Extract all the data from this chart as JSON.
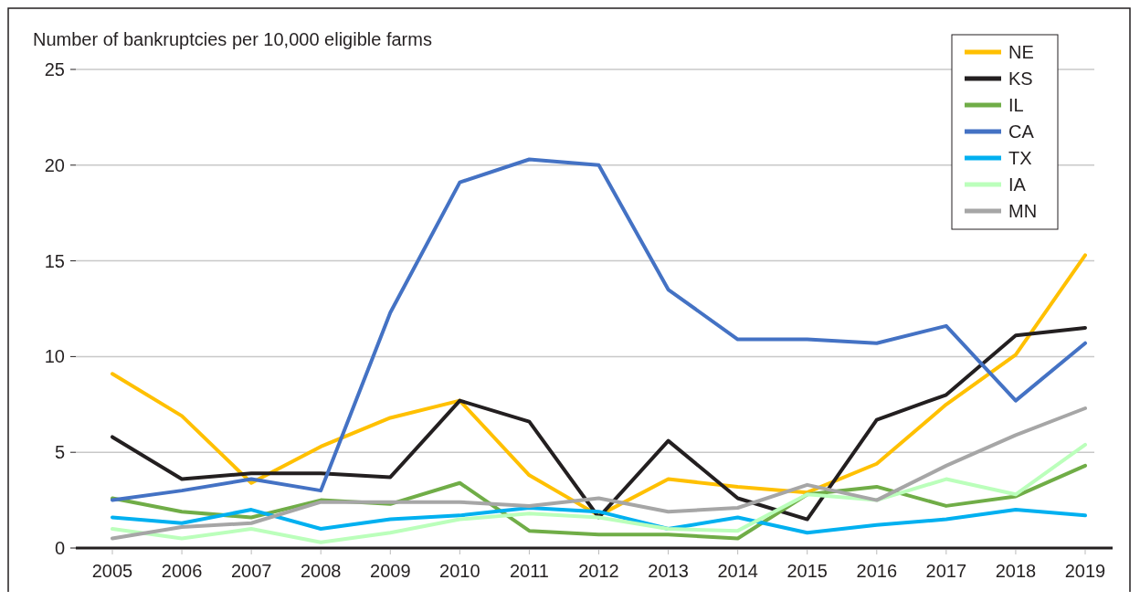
{
  "chart_data": {
    "type": "line",
    "ylabel": "Number of bankruptcies per 10,000 eligible farms",
    "categories": [
      "2005",
      "2006",
      "2007",
      "2008",
      "2009",
      "2010",
      "2011",
      "2012",
      "2013",
      "2014",
      "2015",
      "2016",
      "2017",
      "2018",
      "2019"
    ],
    "ylim": [
      0,
      25
    ],
    "yticks": [
      0,
      5,
      10,
      15,
      20,
      25
    ],
    "grid": "y",
    "legend": "top right",
    "line_style": "solid",
    "marker": "none",
    "series": [
      {
        "name": "NE",
        "color": "#ffc000",
        "values": [
          9.1,
          6.9,
          3.4,
          5.3,
          6.8,
          7.7,
          3.8,
          1.7,
          3.6,
          3.2,
          2.9,
          4.4,
          7.5,
          10.1,
          15.3
        ]
      },
      {
        "name": "KS",
        "color": "#231f20",
        "values": [
          5.8,
          3.6,
          3.9,
          3.9,
          3.7,
          7.7,
          6.6,
          1.6,
          5.6,
          2.6,
          1.5,
          6.7,
          8.0,
          11.1,
          11.5
        ]
      },
      {
        "name": "IL",
        "color": "#70ad47",
        "values": [
          2.6,
          1.9,
          1.6,
          2.5,
          2.3,
          3.4,
          0.9,
          0.7,
          0.7,
          0.5,
          2.8,
          3.2,
          2.2,
          2.7,
          4.3
        ]
      },
      {
        "name": "CA",
        "color": "#4472c4",
        "values": [
          2.5,
          3.0,
          3.6,
          3.0,
          12.3,
          19.1,
          20.3,
          20.0,
          13.5,
          10.9,
          10.9,
          10.7,
          11.6,
          7.7,
          10.7
        ]
      },
      {
        "name": "TX",
        "color": "#00b0f0",
        "values": [
          1.6,
          1.3,
          2.0,
          1.0,
          1.5,
          1.7,
          2.1,
          1.9,
          1.0,
          1.6,
          0.8,
          1.2,
          1.5,
          2.0,
          1.7
        ]
      },
      {
        "name": "IA",
        "color": "#bbffbb",
        "values": [
          1.0,
          0.5,
          1.0,
          0.3,
          0.8,
          1.5,
          1.8,
          1.6,
          1.0,
          0.9,
          2.8,
          2.5,
          3.6,
          2.8,
          5.4
        ]
      },
      {
        "name": "MN",
        "color": "#a6a6a6",
        "values": [
          0.5,
          1.1,
          1.3,
          2.4,
          2.4,
          2.4,
          2.2,
          2.6,
          1.9,
          2.1,
          3.3,
          2.5,
          4.3,
          5.9,
          7.3
        ]
      }
    ]
  }
}
